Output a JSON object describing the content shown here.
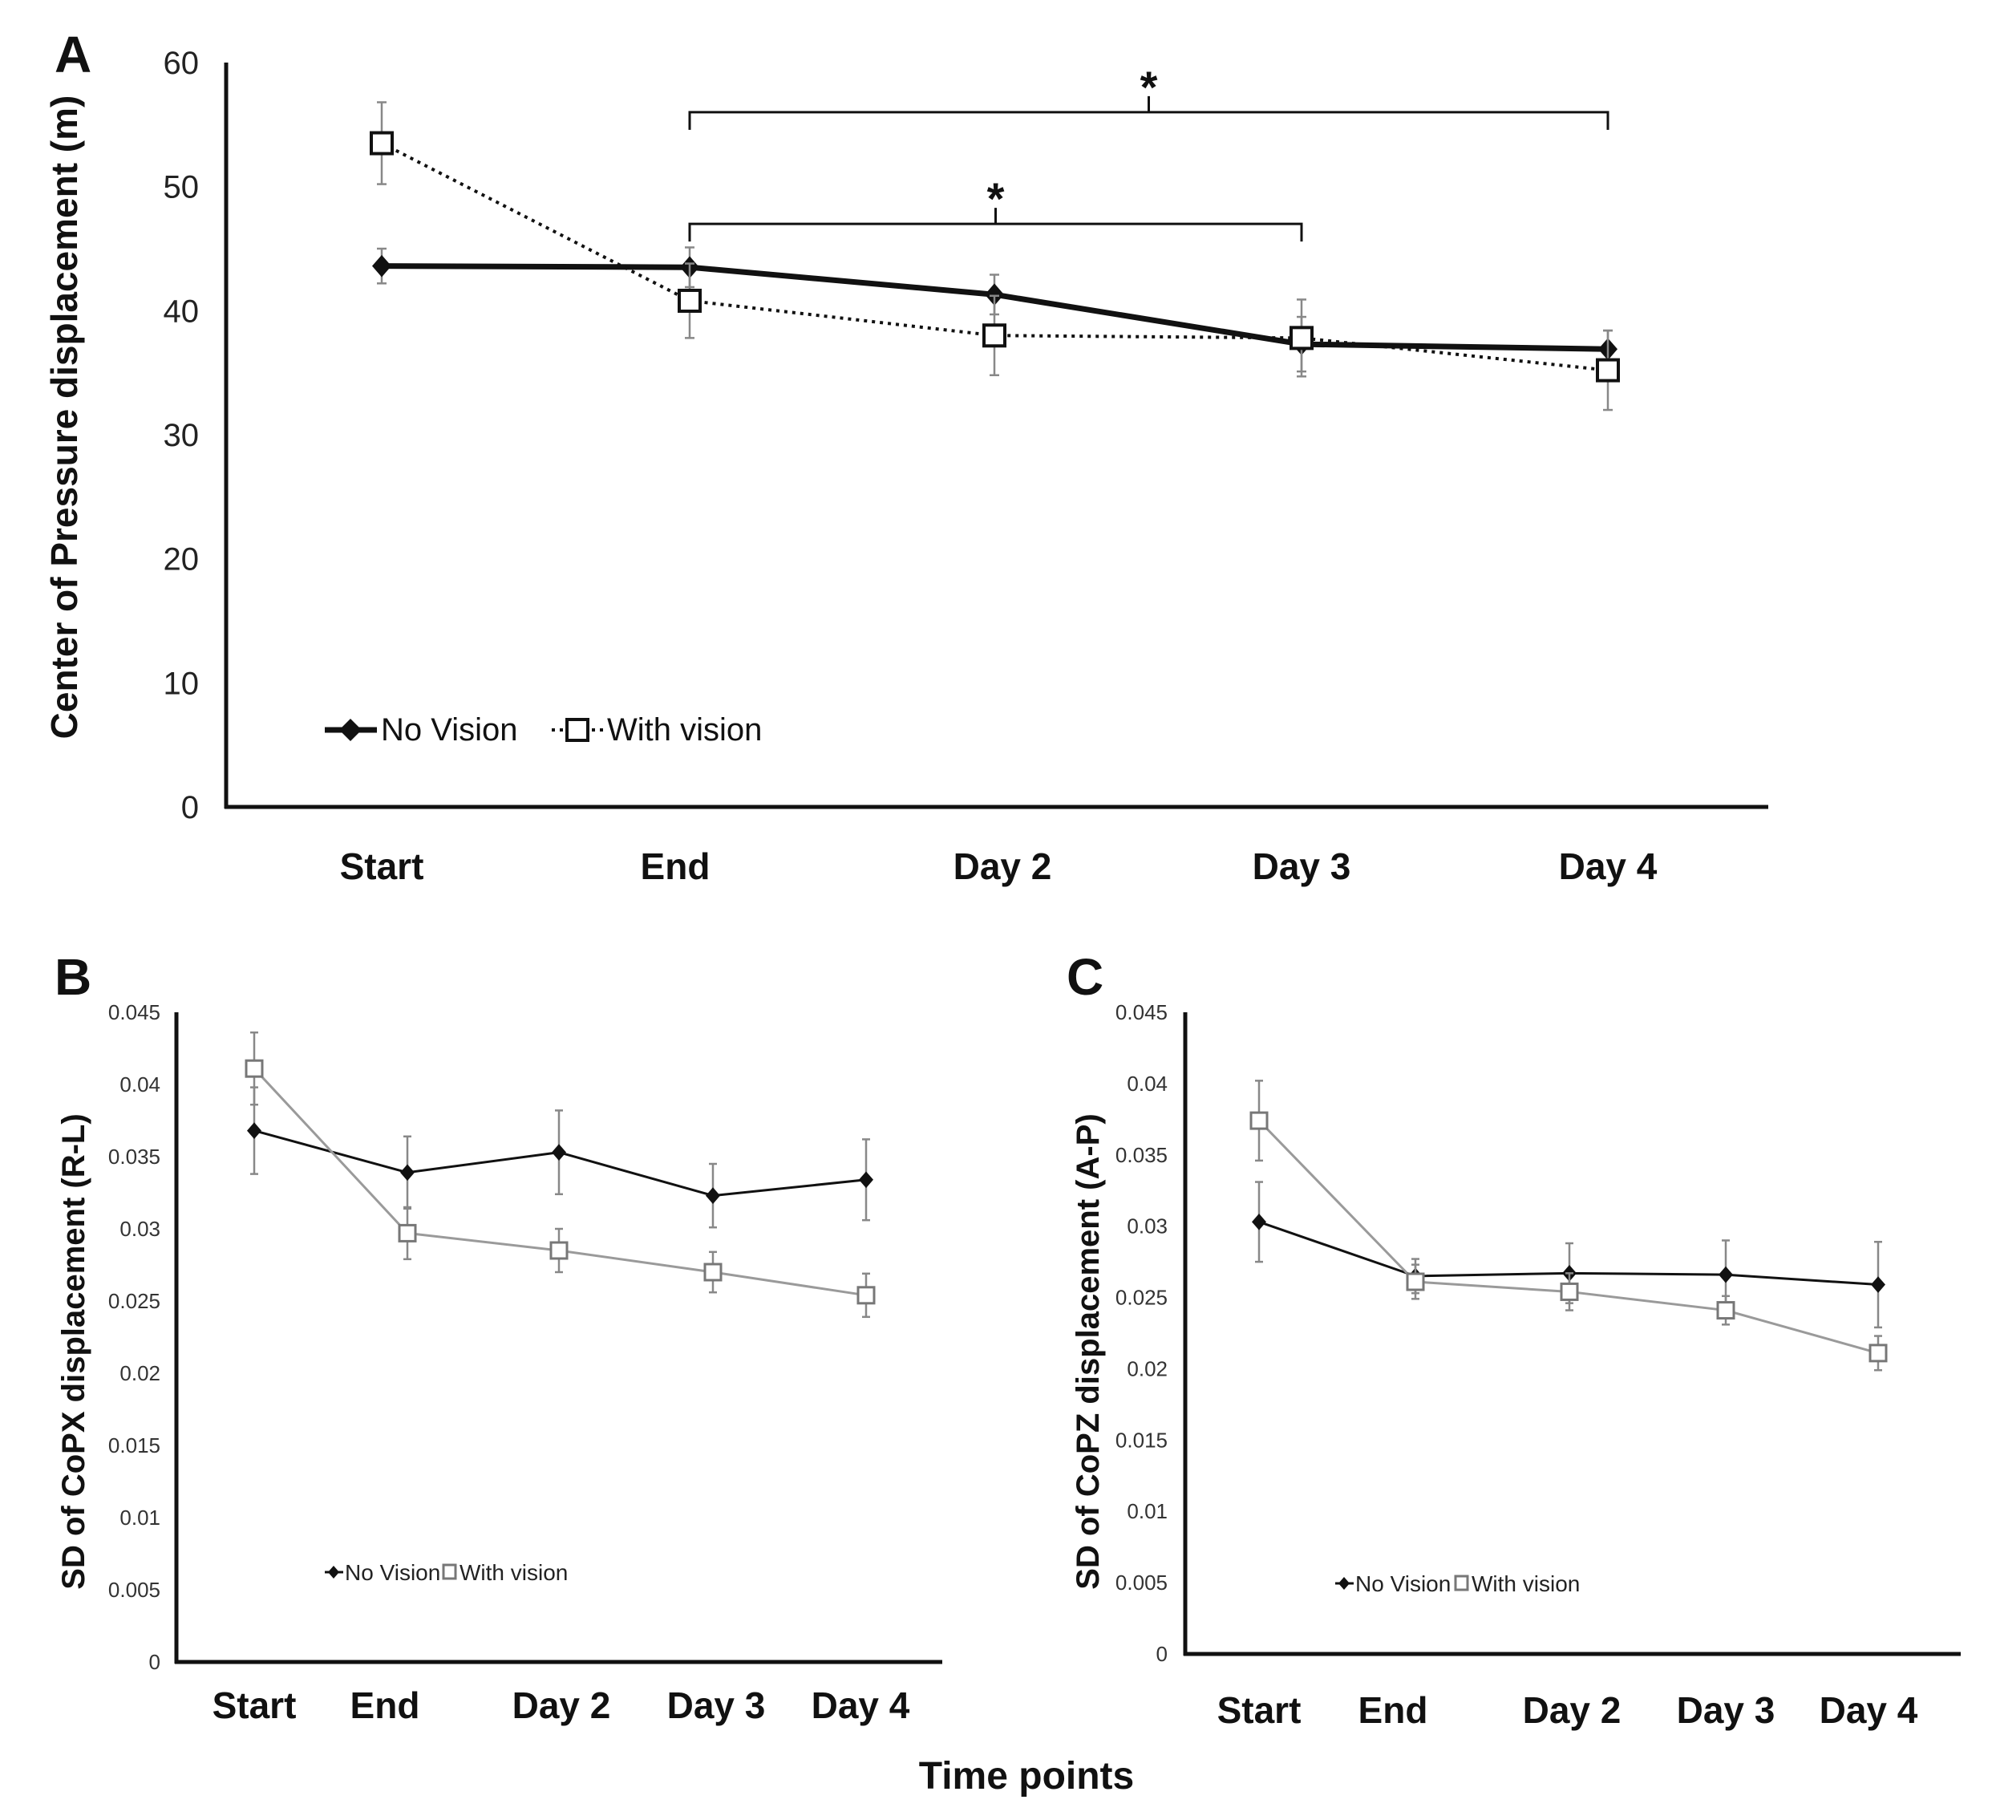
{
  "figure": {
    "xlabel": "Time points",
    "colors": {
      "no_vision": "#111111",
      "with_vision_a": "#111111",
      "with_vision_bc": "#9a9a9a",
      "error_bar": "#888888"
    }
  },
  "chart_data": [
    {
      "panel": "A",
      "type": "line",
      "title": "",
      "ylabel": "Center of Pressure displacement (m)",
      "xlabel": "",
      "categories": [
        "Start",
        "End",
        "Day 2",
        "Day 3",
        "Day 4"
      ],
      "ylim": [
        0,
        60
      ],
      "yticks": [
        "0",
        "10",
        "20",
        "30",
        "40",
        "50",
        "60"
      ],
      "series": [
        {
          "name": "No Vision",
          "values": [
            43.6,
            43.5,
            41.3,
            37.3,
            36.9
          ],
          "errors": [
            1.4,
            1.6,
            1.6,
            2.2,
            1.5
          ],
          "style": "solid",
          "marker": "diamond"
        },
        {
          "name": "With vision",
          "values": [
            53.5,
            40.8,
            38.0,
            37.8,
            35.2
          ],
          "errors": [
            3.3,
            3.0,
            3.2,
            3.1,
            3.2
          ],
          "style": "dotted",
          "marker": "open-square"
        }
      ],
      "annotations": [
        {
          "label": "*",
          "from": "End",
          "to": "Day 4",
          "level": 56
        },
        {
          "label": "*",
          "from": "End",
          "to": "Day 3",
          "level": 47
        }
      ]
    },
    {
      "panel": "B",
      "type": "line",
      "title": "",
      "ylabel": "SD of CoPX displacement (R-L)",
      "xlabel": "",
      "categories": [
        "Start",
        "End",
        "Day 2",
        "Day 3",
        "Day 4"
      ],
      "ylim": [
        0,
        0.045
      ],
      "yticks": [
        "0",
        "0.005",
        "0.01",
        "0.015",
        "0.02",
        "0.025",
        "0.03",
        "0.035",
        "0.04",
        "0.045"
      ],
      "series": [
        {
          "name": "No Vision",
          "values": [
            0.0368,
            0.0339,
            0.0353,
            0.0323,
            0.0334
          ],
          "errors": [
            0.003,
            0.0025,
            0.0029,
            0.0022,
            0.0028
          ],
          "style": "solid",
          "marker": "diamond"
        },
        {
          "name": "With vision",
          "values": [
            0.0411,
            0.0297,
            0.0285,
            0.027,
            0.0254
          ],
          "errors": [
            0.0025,
            0.0018,
            0.0015,
            0.0014,
            0.0015
          ],
          "style": "solid-gray",
          "marker": "open-square"
        }
      ]
    },
    {
      "panel": "C",
      "type": "line",
      "title": "",
      "ylabel": "SD of CoPZ displacement (A-P)",
      "xlabel": "",
      "categories": [
        "Start",
        "End",
        "Day 2",
        "Day 3",
        "Day 4"
      ],
      "ylim": [
        0,
        0.045
      ],
      "yticks": [
        "0",
        "0.005",
        "0.01",
        "0.015",
        "0.02",
        "0.025",
        "0.03",
        "0.035",
        "0.04",
        "0.045"
      ],
      "series": [
        {
          "name": "No Vision",
          "values": [
            0.0303,
            0.0265,
            0.0267,
            0.0266,
            0.0259
          ],
          "errors": [
            0.0028,
            0.0012,
            0.0021,
            0.0024,
            0.003
          ],
          "style": "solid",
          "marker": "diamond"
        },
        {
          "name": "With vision",
          "values": [
            0.0374,
            0.0261,
            0.0254,
            0.0241,
            0.0211
          ],
          "errors": [
            0.0028,
            0.0012,
            0.0013,
            0.001,
            0.0012
          ],
          "style": "solid-gray",
          "marker": "open-square"
        }
      ]
    }
  ]
}
